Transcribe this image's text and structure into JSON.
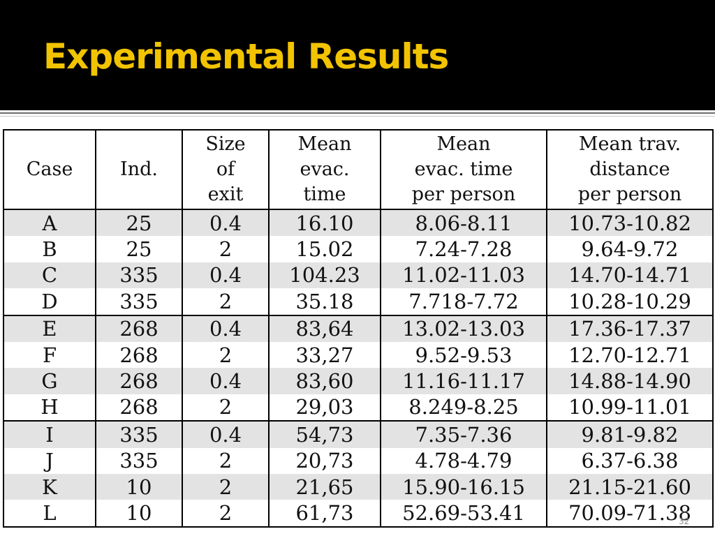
{
  "title": "Experimental Results",
  "slide_number": "32",
  "colors": {
    "title": "#f2c300",
    "header_bg": "#000000",
    "row_shade": "#e3e3e3"
  },
  "table": {
    "headers": [
      [
        "Case"
      ],
      [
        "Ind."
      ],
      [
        "Size",
        "of",
        "exit"
      ],
      [
        "Mean",
        "evac.",
        "time"
      ],
      [
        "Mean",
        "evac. time",
        "per person"
      ],
      [
        "Mean trav.",
        "distance",
        "per person"
      ]
    ],
    "rows": [
      [
        "A",
        "25",
        "0.4",
        "16.10",
        "8.06-8.11",
        "10.73-10.82"
      ],
      [
        "B",
        "25",
        "2",
        "15.02",
        "7.24-7.28",
        "9.64-9.72"
      ],
      [
        "C",
        "335",
        "0.4",
        "104.23",
        "11.02-11.03",
        "14.70-14.71"
      ],
      [
        "D",
        "335",
        "2",
        "35.18",
        "7.718-7.72",
        "10.28-10.29"
      ],
      [
        "E",
        "268",
        "0.4",
        "83,64",
        "13.02-13.03",
        "17.36-17.37"
      ],
      [
        "F",
        "268",
        "2",
        "33,27",
        "9.52-9.53",
        "12.70-12.71"
      ],
      [
        "G",
        "268",
        "0.4",
        "83,60",
        "11.16-11.17",
        "14.88-14.90"
      ],
      [
        "H",
        "268",
        "2",
        "29,03",
        "8.249-8.25",
        "10.99-11.01"
      ],
      [
        "I",
        "335",
        "0.4",
        "54,73",
        "7.35-7.36",
        "9.81-9.82"
      ],
      [
        "J",
        "335",
        "2",
        "20,73",
        "4.78-4.79",
        "6.37-6.38"
      ],
      [
        "K",
        "10",
        "2",
        "21,65",
        "15.90-16.15",
        "21.15-21.60"
      ],
      [
        "L",
        "10",
        "2",
        "61,73",
        "52.69-53.41",
        "70.09-71.38"
      ]
    ]
  }
}
